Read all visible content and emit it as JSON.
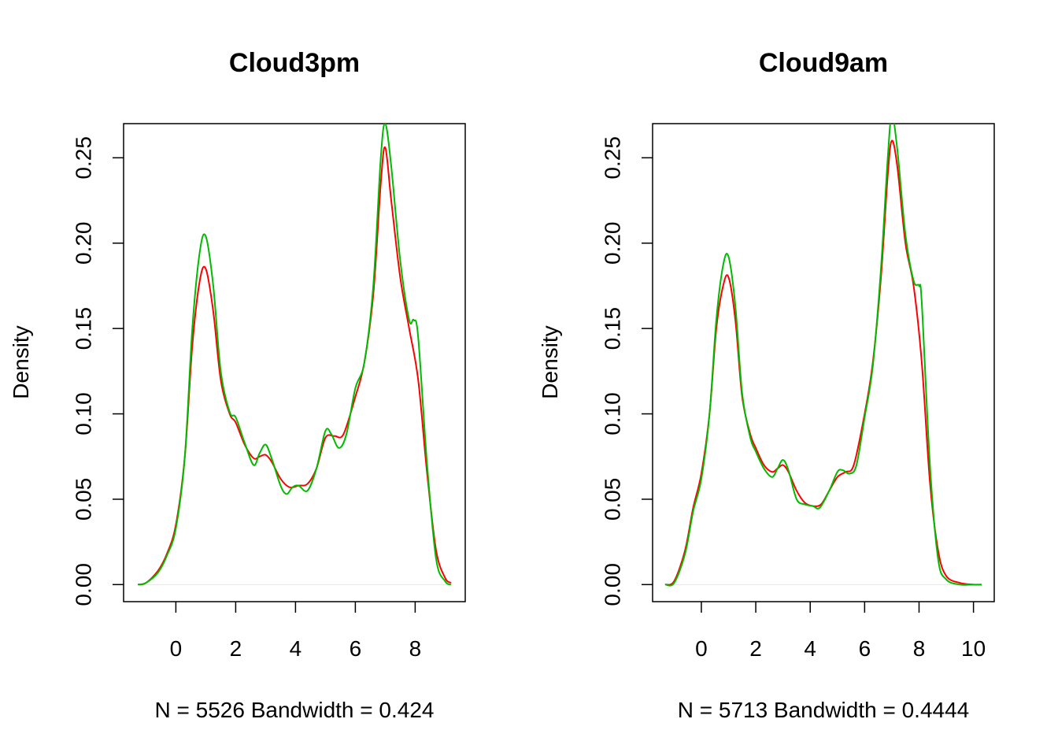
{
  "chart_data": [
    {
      "type": "line",
      "title": "Cloud3pm",
      "xlabel": "N = 5526   Bandwidth = 0.424",
      "ylabel": "Density",
      "xlim": [
        -1.3,
        9.2
      ],
      "ylim": [
        -0.01,
        0.27
      ],
      "xticks": [
        0,
        2,
        4,
        6,
        8
      ],
      "yticks": [
        0.0,
        0.05,
        0.1,
        0.15,
        0.2,
        0.25
      ],
      "ytick_labels": [
        "0.00",
        "0.05",
        "0.10",
        "0.15",
        "0.20",
        "0.25"
      ],
      "grid": false,
      "series": [
        {
          "color": "#ff0000",
          "x": [
            -1.27,
            -1.0,
            -0.6,
            -0.3,
            0.0,
            0.3,
            0.55,
            0.8,
            1.0,
            1.25,
            1.5,
            1.8,
            2.0,
            2.3,
            2.6,
            2.8,
            3.0,
            3.2,
            3.5,
            3.8,
            4.1,
            4.4,
            4.7,
            5.0,
            5.3,
            5.6,
            6.0,
            6.3,
            6.6,
            6.85,
            7.0,
            7.2,
            7.5,
            7.8,
            8.1,
            8.4,
            8.7,
            9.0,
            9.2
          ],
          "y": [
            0.0,
            0.001,
            0.008,
            0.018,
            0.035,
            0.075,
            0.14,
            0.178,
            0.185,
            0.16,
            0.12,
            0.1,
            0.095,
            0.082,
            0.074,
            0.075,
            0.076,
            0.072,
            0.062,
            0.057,
            0.058,
            0.059,
            0.068,
            0.086,
            0.087,
            0.088,
            0.11,
            0.13,
            0.17,
            0.235,
            0.256,
            0.225,
            0.18,
            0.15,
            0.12,
            0.065,
            0.02,
            0.004,
            0.001
          ]
        },
        {
          "color": "#00bb00",
          "x": [
            -1.27,
            -1.0,
            -0.6,
            -0.3,
            0.0,
            0.3,
            0.55,
            0.8,
            1.0,
            1.25,
            1.5,
            1.8,
            2.0,
            2.3,
            2.6,
            2.8,
            3.0,
            3.2,
            3.5,
            3.7,
            3.9,
            4.1,
            4.4,
            4.7,
            5.0,
            5.2,
            5.45,
            5.7,
            6.0,
            6.3,
            6.6,
            6.85,
            7.0,
            7.2,
            7.5,
            7.8,
            7.95,
            8.1,
            8.4,
            8.7,
            9.0,
            9.2
          ],
          "y": [
            0.0,
            0.001,
            0.007,
            0.017,
            0.033,
            0.075,
            0.15,
            0.195,
            0.204,
            0.175,
            0.125,
            0.101,
            0.098,
            0.083,
            0.07,
            0.077,
            0.082,
            0.074,
            0.058,
            0.053,
            0.057,
            0.058,
            0.055,
            0.068,
            0.09,
            0.088,
            0.08,
            0.088,
            0.115,
            0.13,
            0.175,
            0.25,
            0.27,
            0.245,
            0.19,
            0.155,
            0.155,
            0.145,
            0.07,
            0.015,
            0.002,
            0.0
          ]
        }
      ]
    },
    {
      "type": "line",
      "title": "Cloud9am",
      "xlabel": "N = 5713   Bandwidth = 0.4444",
      "ylabel": "Density",
      "xlim": [
        -1.3,
        10.3
      ],
      "ylim": [
        -0.01,
        0.27
      ],
      "xticks": [
        0,
        2,
        4,
        6,
        8,
        10
      ],
      "yticks": [
        0.0,
        0.05,
        0.1,
        0.15,
        0.2,
        0.25
      ],
      "ytick_labels": [
        "0.00",
        "0.05",
        "0.10",
        "0.15",
        "0.20",
        "0.25"
      ],
      "grid": false,
      "series": [
        {
          "color": "#ff0000",
          "x": [
            -1.33,
            -1.0,
            -0.6,
            -0.3,
            0.0,
            0.3,
            0.55,
            0.8,
            1.0,
            1.25,
            1.5,
            1.8,
            2.0,
            2.3,
            2.6,
            2.8,
            3.0,
            3.2,
            3.5,
            3.8,
            4.1,
            4.4,
            4.7,
            5.0,
            5.3,
            5.6,
            6.0,
            6.3,
            6.6,
            6.85,
            7.0,
            7.2,
            7.5,
            7.8,
            8.1,
            8.4,
            8.7,
            9.0,
            9.5,
            10.0,
            10.3
          ],
          "y": [
            0.0,
            0.002,
            0.02,
            0.045,
            0.065,
            0.1,
            0.15,
            0.175,
            0.18,
            0.155,
            0.11,
            0.088,
            0.08,
            0.07,
            0.066,
            0.068,
            0.07,
            0.066,
            0.055,
            0.048,
            0.046,
            0.047,
            0.055,
            0.063,
            0.066,
            0.07,
            0.1,
            0.13,
            0.18,
            0.24,
            0.26,
            0.245,
            0.2,
            0.175,
            0.13,
            0.06,
            0.02,
            0.005,
            0.001,
            0.0,
            0.0
          ]
        },
        {
          "color": "#00bb00",
          "x": [
            -1.33,
            -1.0,
            -0.6,
            -0.3,
            0.0,
            0.3,
            0.55,
            0.8,
            1.0,
            1.25,
            1.5,
            1.8,
            2.0,
            2.3,
            2.6,
            2.8,
            3.0,
            3.2,
            3.5,
            3.8,
            4.1,
            4.35,
            4.7,
            5.0,
            5.2,
            5.45,
            5.7,
            6.0,
            6.3,
            6.6,
            6.85,
            7.0,
            7.2,
            7.5,
            7.8,
            8.0,
            8.1,
            8.4,
            8.7,
            9.0,
            9.5,
            10.0,
            10.3
          ],
          "y": [
            0.0,
            0.001,
            0.018,
            0.043,
            0.062,
            0.1,
            0.155,
            0.187,
            0.192,
            0.163,
            0.112,
            0.086,
            0.078,
            0.068,
            0.063,
            0.068,
            0.073,
            0.067,
            0.05,
            0.047,
            0.046,
            0.045,
            0.055,
            0.066,
            0.067,
            0.065,
            0.07,
            0.098,
            0.128,
            0.185,
            0.25,
            0.275,
            0.255,
            0.205,
            0.178,
            0.175,
            0.165,
            0.07,
            0.015,
            0.003,
            0.0,
            0.0,
            0.0
          ]
        }
      ]
    }
  ]
}
